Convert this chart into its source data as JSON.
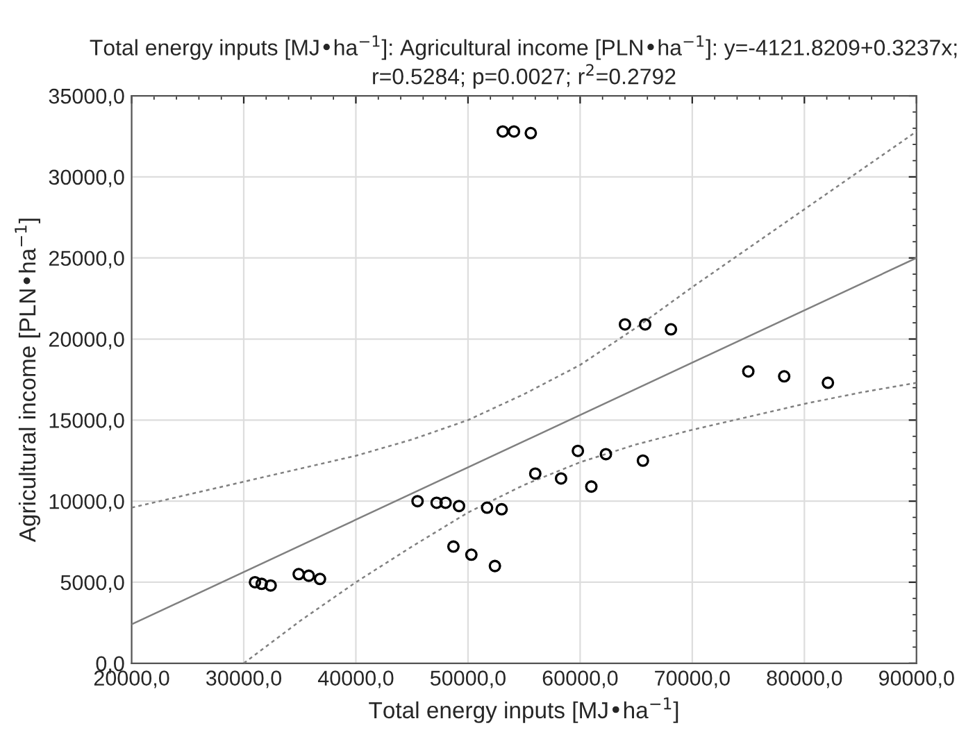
{
  "chart_data": {
    "type": "scatter",
    "title": "Total energy inputs [MJ•ha$^{−1}$]: Agricultural income [PLN•ha$^{−1}$]: y=-4121.8209+0.3237x;\nr=0.5284; p=0.0027; r$^{2}$=0.2792",
    "xlabel": "Total energy inputs [MJ•ha$^{−1}$]",
    "ylabel": "Agricultural income [PLN•ha$^{−1}$]",
    "xlim": [
      20000,
      90000
    ],
    "ylim": [
      0,
      35000
    ],
    "xticks": [
      {
        "value": 20000,
        "label": "20000,0"
      },
      {
        "value": 30000,
        "label": "30000,0"
      },
      {
        "value": 40000,
        "label": "40000,0"
      },
      {
        "value": 50000,
        "label": "50000,0"
      },
      {
        "value": 60000,
        "label": "60000,0"
      },
      {
        "value": 70000,
        "label": "70000,0"
      },
      {
        "value": 80000,
        "label": "80000,0"
      },
      {
        "value": 90000,
        "label": "90000,0"
      }
    ],
    "yticks": [
      {
        "value": 0,
        "label": "0,0"
      },
      {
        "value": 5000,
        "label": "5000,0"
      },
      {
        "value": 10000,
        "label": "10000,0"
      },
      {
        "value": 15000,
        "label": "15000,0"
      },
      {
        "value": 20000,
        "label": "20000,0"
      },
      {
        "value": 25000,
        "label": "25000,0"
      },
      {
        "value": 30000,
        "label": "30000,0"
      },
      {
        "value": 35000,
        "label": "35000,0"
      }
    ],
    "grid": true,
    "marker": "circle",
    "series": [
      {
        "color": "#000000",
        "x": [
          31000,
          31600,
          32400,
          34900,
          35800,
          36800,
          45500,
          47200,
          48000,
          49200,
          48700,
          50300,
          51700,
          53000,
          52400,
          56000,
          58300,
          61000,
          59800,
          62300,
          65600,
          64000,
          65800,
          68100,
          75000,
          78200,
          82100,
          53100,
          54100,
          55600
        ],
        "values": [
          5000,
          4900,
          4800,
          5500,
          5400,
          5200,
          10000,
          9900,
          9900,
          9700,
          7200,
          6700,
          9600,
          9500,
          6000,
          11700,
          11400,
          10900,
          13100,
          12900,
          12500,
          20900,
          20900,
          20600,
          18000,
          17700,
          17300,
          32800,
          32800,
          32700
        ]
      },
      {
        "type": "line",
        "color": "#808080",
        "line_style": "solid",
        "marker": "none",
        "x": [
          20000,
          90000
        ],
        "values": [
          2400,
          25000
        ]
      },
      {
        "type": "line",
        "color": "#808080",
        "line_style": "dotted",
        "marker": "none",
        "x": [
          20000,
          30000,
          40000,
          45000,
          50000,
          55000,
          60000,
          65000,
          70000,
          75000,
          80000,
          85000,
          90000
        ],
        "values": [
          9600,
          11200,
          12800,
          13800,
          15000,
          16600,
          18400,
          20700,
          23200,
          25600,
          28000,
          30400,
          32800
        ]
      },
      {
        "type": "line",
        "color": "#808080",
        "line_style": "dotted",
        "marker": "none",
        "x": [
          30000,
          35000,
          40000,
          45000,
          50000,
          55000,
          60000,
          65000,
          70000,
          75000,
          80000,
          85000,
          90000
        ],
        "values": [
          0,
          2600,
          5000,
          7200,
          9300,
          11000,
          12400,
          13500,
          14400,
          15200,
          16000,
          16700,
          17300
        ]
      }
    ]
  }
}
